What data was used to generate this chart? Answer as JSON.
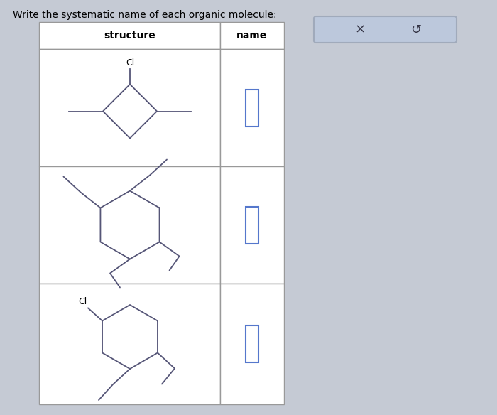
{
  "title": "Write the systematic name of each organic molecule:",
  "background_color": "#c5cad4",
  "table_border_color": "#999999",
  "molecule_color": "#555577",
  "header_font_size": 10,
  "title_font_size": 10,
  "button_bg": "#bcc8dc",
  "button_border": "#a0aabb",
  "col_header_1": "structure",
  "col_header_2": "name",
  "input_box_color": "#5577cc",
  "button_x": "×",
  "button_redo": "↺"
}
